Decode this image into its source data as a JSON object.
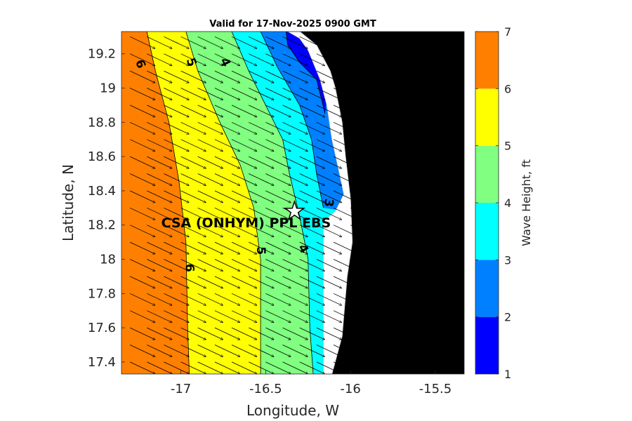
{
  "chart_data": {
    "type": "heatmap",
    "title": "Valid for 17-Nov-2025 0900 GMT",
    "xlabel": "Longitude, W",
    "ylabel": "Latitude, N",
    "xlim": [
      -17.35,
      -15.33
    ],
    "ylim": [
      17.33,
      19.33
    ],
    "x_ticks": [
      -17,
      -16.5,
      -16,
      -15.5
    ],
    "x_tick_labels": [
      "-17",
      "-16.5",
      "-16",
      "-15.5"
    ],
    "y_ticks": [
      17.4,
      17.6,
      17.8,
      18,
      18.2,
      18.4,
      18.6,
      18.8,
      19,
      19.2
    ],
    "y_tick_labels": [
      "17.4",
      "17.6",
      "17.8",
      "18",
      "18.2",
      "18.4",
      "18.6",
      "18.8",
      "19",
      "19.2"
    ],
    "colorbar": {
      "label": "Wave Height, ft",
      "levels": [
        1,
        2,
        3,
        4,
        5,
        6,
        7
      ],
      "tick_labels": [
        "1",
        "2",
        "3",
        "4",
        "5",
        "6",
        "7"
      ],
      "colors": [
        "#0000ff",
        "#0080ff",
        "#00ffff",
        "#80ff80",
        "#ffff00",
        "#ff8000"
      ]
    },
    "contours": [
      {
        "level": 6,
        "label": "6",
        "points": [
          [
            -17.2,
            19.33
          ],
          [
            -17.15,
            19.1
          ],
          [
            -17.07,
            18.8
          ],
          [
            -17.01,
            18.45
          ],
          [
            -16.97,
            18.1
          ],
          [
            -16.96,
            17.6
          ],
          [
            -16.95,
            17.33
          ]
        ]
      },
      {
        "level": 5,
        "label": "5",
        "points": [
          [
            -16.97,
            19.33
          ],
          [
            -16.9,
            19.1
          ],
          [
            -16.77,
            18.8
          ],
          [
            -16.65,
            18.55
          ],
          [
            -16.57,
            18.3
          ],
          [
            -16.53,
            18.0
          ],
          [
            -16.53,
            17.6
          ],
          [
            -16.53,
            17.33
          ]
        ]
      },
      {
        "level": 4,
        "label": "4",
        "points": [
          [
            -16.7,
            19.33
          ],
          [
            -16.6,
            19.1
          ],
          [
            -16.5,
            18.9
          ],
          [
            -16.4,
            18.7
          ],
          [
            -16.36,
            18.5
          ],
          [
            -16.3,
            18.25
          ],
          [
            -16.25,
            18.0
          ],
          [
            -16.24,
            17.6
          ],
          [
            -16.22,
            17.33
          ]
        ]
      },
      {
        "level": 3,
        "label": "3",
        "points": [
          [
            -16.53,
            19.33
          ],
          [
            -16.43,
            19.12
          ],
          [
            -16.3,
            18.9
          ],
          [
            -16.23,
            18.7
          ],
          [
            -16.2,
            18.5
          ],
          [
            -16.16,
            18.3
          ]
        ]
      },
      {
        "level": 2,
        "label": "",
        "points": [
          [
            -16.38,
            19.33
          ],
          [
            -16.37,
            19.25
          ],
          [
            -16.3,
            19.15
          ],
          [
            -16.2,
            19.05
          ],
          [
            -16.15,
            18.85
          ]
        ]
      }
    ],
    "coast": [
      [
        -16.38,
        19.33
      ],
      [
        -16.3,
        19.3
      ],
      [
        -16.24,
        19.26
      ],
      [
        -16.18,
        19.12
      ],
      [
        -16.14,
        18.95
      ],
      [
        -16.11,
        18.72
      ],
      [
        -16.07,
        18.55
      ],
      [
        -16.0,
        18.38
      ],
      [
        -16.04,
        18.2
      ],
      [
        -16.1,
        18.05
      ],
      [
        -16.11,
        17.85
      ],
      [
        -16.13,
        17.55
      ],
      [
        -16.15,
        17.33
      ]
    ],
    "wave_direction_vectors": "arrows pointing east-southeast",
    "site": {
      "name": "CSA (ONHYM) PPL EBS",
      "lon": -16.33,
      "lat": 18.28
    }
  }
}
